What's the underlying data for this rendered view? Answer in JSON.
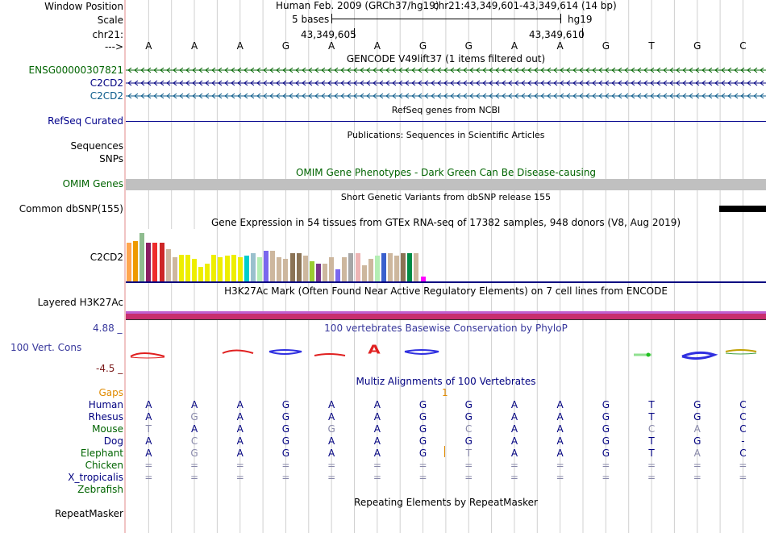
{
  "header": {
    "window_position_label": "Window Position",
    "scale_label": "Scale",
    "chrom_label": "chr21:",
    "arrow_label": "--->",
    "assembly_text": "Human Feb. 2009 (GRCh37/hg19)",
    "position_text": "chr21:43,349,601-43,349,614 (14 bp)",
    "scale_text": "5 bases",
    "db_text": "hg19",
    "coord_left": "43,349,605",
    "coord_right": "43,349,610"
  },
  "bases": [
    "A",
    "A",
    "A",
    "G",
    "A",
    "A",
    "G",
    "G",
    "A",
    "A",
    "G",
    "T",
    "G",
    "C"
  ],
  "tracks": {
    "gencode_title": "GENCODE V49lift37 (1 items filtered out)",
    "gencode_genes": [
      "ENSG00000307821",
      "C2CD2",
      "C2CD2"
    ],
    "refseq_title": "RefSeq genes from NCBI",
    "refseq_label": "RefSeq Curated",
    "pubs_title": "Publications: Sequences in Scientific Articles",
    "pubs_label_1": "Sequences",
    "pubs_label_2": "SNPs",
    "omim_title": "OMIM Gene Phenotypes - Dark Green Can Be Disease-causing",
    "omim_label": "OMIM Genes",
    "dbsnp_title": "Short Genetic Variants from dbSNP release 155",
    "dbsnp_label": "Common dbSNP(155)",
    "gtex_title": "Gene Expression in 54 tissues from GTEx RNA-seq of 17382 samples, 948 donors (V8, Aug 2019)",
    "gtex_label": "C2CD2",
    "h3k_title": "H3K27Ac Mark (Often Found Near Active Regulatory Elements) on 7 cell lines from ENCODE",
    "h3k_label": "Layered H3K27Ac",
    "cons_title": "100 vertebrates Basewise Conservation by PhyloP",
    "cons_label": "100 Vert. Cons",
    "cons_max": "4.88 _",
    "cons_min": "-4.5 _",
    "multiz_title": "Multiz Alignments of 100 Vertebrates",
    "gaps_label": "Gaps",
    "gaps_value": "1",
    "repeat_title": "Repeating Elements by RepeatMasker",
    "repeat_label": "RepeatMasker"
  },
  "alignment": [
    {
      "species": "Human",
      "color": "#000080",
      "bases": [
        "A",
        "A",
        "A",
        "G",
        "A",
        "A",
        "G",
        "G",
        "A",
        "A",
        "G",
        "T",
        "G",
        "C"
      ]
    },
    {
      "species": "Rhesus",
      "color": "#000080",
      "bases": [
        "A",
        "G",
        "A",
        "G",
        "A",
        "A",
        "G",
        "G",
        "A",
        "A",
        "G",
        "T",
        "G",
        "C"
      ]
    },
    {
      "species": "Mouse",
      "color": "#006400",
      "bases": [
        "T",
        "A",
        "A",
        "G",
        "G",
        "A",
        "G",
        "C",
        "A",
        "A",
        "G",
        "C",
        "A",
        "C"
      ]
    },
    {
      "species": "Dog",
      "color": "#000080",
      "bases": [
        "A",
        "C",
        "A",
        "G",
        "A",
        "A",
        "G",
        "G",
        "A",
        "A",
        "G",
        "T",
        "G",
        "-"
      ]
    },
    {
      "species": "Elephant",
      "color": "#006400",
      "bases": [
        "A",
        "G",
        "A",
        "G",
        "A",
        "A",
        "G",
        "T",
        "A",
        "A",
        "G",
        "T",
        "A",
        "C"
      ]
    },
    {
      "species": "Chicken",
      "color": "#006400",
      "bases": [
        "=",
        "=",
        "=",
        "=",
        "=",
        "=",
        "=",
        "=",
        "=",
        "=",
        "=",
        "=",
        "=",
        "="
      ]
    },
    {
      "species": "X_tropicalis",
      "color": "#000080",
      "bases": [
        "=",
        "=",
        "=",
        "=",
        "=",
        "=",
        "=",
        "=",
        "=",
        "=",
        "=",
        "=",
        "=",
        "="
      ]
    },
    {
      "species": "Zebrafish",
      "color": "#006400",
      "bases": []
    }
  ],
  "mismatch_map": {
    "Rhesus": [
      1
    ],
    "Mouse": [
      0,
      4,
      7,
      11,
      12
    ],
    "Dog": [
      1
    ],
    "Elephant": [
      1,
      7,
      12
    ],
    "Chicken": [
      0,
      1,
      2,
      3,
      4,
      5,
      6,
      7,
      8,
      9,
      10,
      11,
      12,
      13
    ],
    "X_tropicalis": [
      0,
      1,
      2,
      3,
      4,
      5,
      6,
      7,
      8,
      9,
      10,
      11,
      12,
      13
    ]
  },
  "gtex_values": [
    {
      "v": 48,
      "c": "#ffa54f"
    },
    {
      "v": 50,
      "c": "#ee9a00"
    },
    {
      "v": 60,
      "c": "#8fbc8f"
    },
    {
      "v": 48,
      "c": "#8b1c62"
    },
    {
      "v": 48,
      "c": "#ee2c2c"
    },
    {
      "v": 48,
      "c": "#cd2626"
    },
    {
      "v": 40,
      "c": "#cdb79e"
    },
    {
      "v": 30,
      "c": "#cdb79e"
    },
    {
      "v": 33,
      "c": "#eeee00"
    },
    {
      "v": 33,
      "c": "#eeee00"
    },
    {
      "v": 28,
      "c": "#eeee00"
    },
    {
      "v": 18,
      "c": "#eeee00"
    },
    {
      "v": 22,
      "c": "#eeee00"
    },
    {
      "v": 33,
      "c": "#eeee00"
    },
    {
      "v": 30,
      "c": "#eeee00"
    },
    {
      "v": 32,
      "c": "#eeee00"
    },
    {
      "v": 33,
      "c": "#eeee00"
    },
    {
      "v": 30,
      "c": "#eeee00"
    },
    {
      "v": 32,
      "c": "#00cdcd"
    },
    {
      "v": 35,
      "c": "#9ac0cd"
    },
    {
      "v": 30,
      "c": "#b4eeb4"
    },
    {
      "v": 38,
      "c": "#7a67ee"
    },
    {
      "v": 38,
      "c": "#cdb79e"
    },
    {
      "v": 30,
      "c": "#cdb79e"
    },
    {
      "v": 28,
      "c": "#cdb79e"
    },
    {
      "v": 35,
      "c": "#8b7355"
    },
    {
      "v": 35,
      "c": "#8b7355"
    },
    {
      "v": 32,
      "c": "#cdb79e"
    },
    {
      "v": 25,
      "c": "#9acd32"
    },
    {
      "v": 22,
      "c": "#7a378b"
    },
    {
      "v": 22,
      "c": "#cdb79e"
    },
    {
      "v": 30,
      "c": "#cdb79e"
    },
    {
      "v": 15,
      "c": "#7a67ee"
    },
    {
      "v": 30,
      "c": "#cdb79e"
    },
    {
      "v": 35,
      "c": "#a6a6a6"
    },
    {
      "v": 35,
      "c": "#eeb4b4"
    },
    {
      "v": 20,
      "c": "#cdb79e"
    },
    {
      "v": 28,
      "c": "#cdb79e"
    },
    {
      "v": 32,
      "c": "#b4eeb4"
    },
    {
      "v": 35,
      "c": "#3a5fcd"
    },
    {
      "v": 35,
      "c": "#cdb79e"
    },
    {
      "v": 32,
      "c": "#cdb79e"
    },
    {
      "v": 35,
      "c": "#8b7355"
    },
    {
      "v": 35,
      "c": "#008b45"
    },
    {
      "v": 35,
      "c": "#cdb79e"
    },
    {
      "v": 6,
      "c": "#ff00ff"
    }
  ],
  "colors": {
    "gencode": "#006400",
    "c2cd2_blue": "#000080",
    "c2cd2_teal": "#0a5a8a",
    "refseq": "#00008b",
    "omim_bar": "#c0c0c0",
    "h3k_bar": "#c82e6e",
    "cons_label": "#38389c",
    "cons_min": "#7a1a1a",
    "gaps": "#e08a00",
    "grid": "#d0d0d0"
  }
}
